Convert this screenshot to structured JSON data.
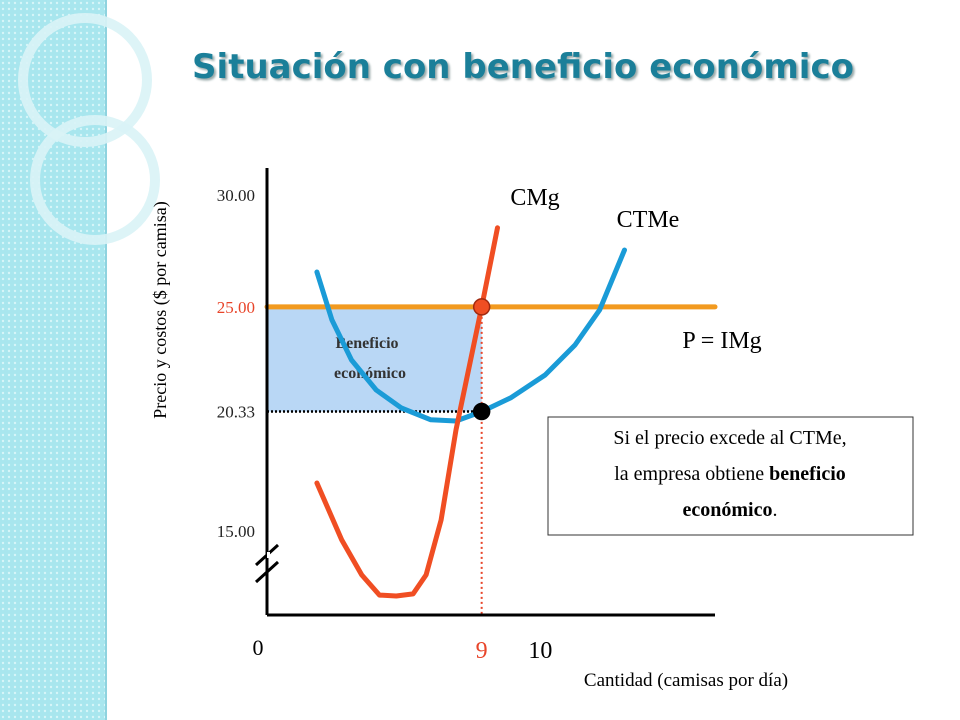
{
  "chart_data": {
    "type": "line",
    "title": "Situación con beneficio económico",
    "y_label": "Precio y costos ($ por camisa)",
    "x_label": "Cantidad (camisas por día)",
    "origin_label": "0",
    "xlim": [
      4.4,
      14
    ],
    "ylim": [
      11.25,
      31.2
    ],
    "xticks": [
      9,
      10
    ],
    "yticks": [
      {
        "value": 30,
        "label": "30.00"
      },
      {
        "value": 25,
        "label": "25.00"
      },
      {
        "value": 20.33,
        "label": "20.33"
      },
      {
        "value": 15,
        "label": "15.00"
      }
    ],
    "highlight_color": "#e8452a",
    "series": [
      {
        "name": "CMg",
        "color": "#f04e23",
        "x": [
          5.47,
          6.0,
          6.43,
          6.81,
          7.17,
          7.53,
          7.81,
          8.13,
          8.45,
          9.0,
          9.34
        ],
        "values": [
          17.14,
          14.6,
          13.04,
          12.14,
          12.1,
          12.19,
          13.04,
          15.49,
          19.51,
          25,
          28.53
        ]
      },
      {
        "name": "CTMe",
        "color": "#1a9bd7",
        "x": [
          5.47,
          5.79,
          6.21,
          6.74,
          7.28,
          7.91,
          8.45,
          9.0,
          9.62,
          10.36,
          11.0,
          11.53,
          12.06
        ],
        "values": [
          26.56,
          24.42,
          22.63,
          21.29,
          20.49,
          19.96,
          19.91,
          20.33,
          20.94,
          21.96,
          23.3,
          24.87,
          27.54
        ]
      },
      {
        "name": "P = IMg",
        "color": "#f29a1f",
        "x": [
          4.4,
          14
        ],
        "values": [
          25,
          25
        ]
      }
    ],
    "points": [
      {
        "x": 9,
        "y": 25,
        "color": "#f04e23"
      },
      {
        "x": 9,
        "y": 20.33,
        "color": "#000000"
      }
    ],
    "profit_area": {
      "color": "#b9d7f5",
      "label": [
        "Beneficio",
        "económico"
      ]
    },
    "annotation": [
      [
        {
          "text": "Si el precio excede al CTMe,",
          "bold": false
        }
      ],
      [
        {
          "text": "la empresa obtiene ",
          "bold": false
        },
        {
          "text": "beneficio",
          "bold": true
        }
      ],
      [
        {
          "text": "económico",
          "bold": true
        },
        {
          "text": ".",
          "bold": false
        }
      ]
    ]
  }
}
